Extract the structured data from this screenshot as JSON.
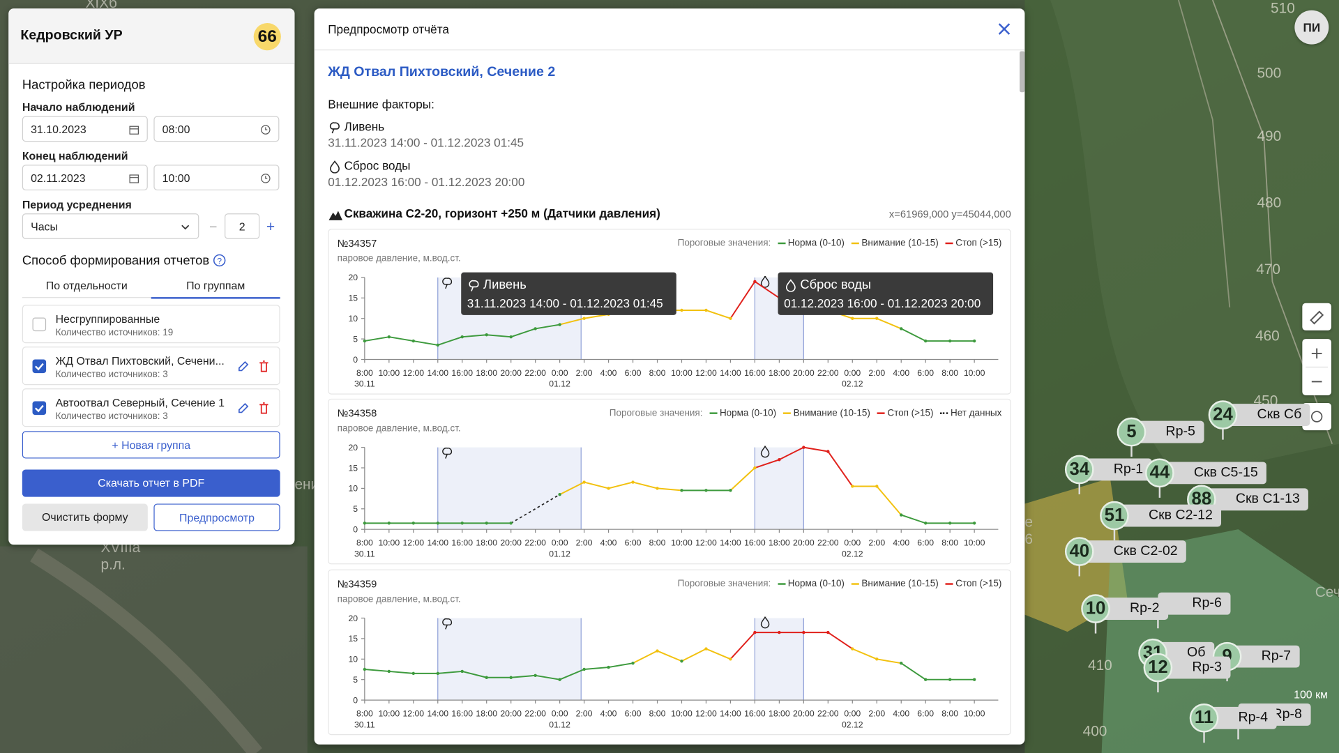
{
  "left_panel": {
    "title": "Кедровский УР",
    "badge": 66,
    "section_title": "Настройка периодов",
    "start_label": "Начало наблюдений",
    "start_date": "31.10.2023",
    "start_time": "08:00",
    "end_label": "Конец наблюдений",
    "end_date": "02.11.2023",
    "end_time": "10:00",
    "avg_label": "Период усреднения",
    "avg_unit": "Часы",
    "avg_count": 2,
    "method_title": "Способ формирования отчетов",
    "tabs": [
      "По отдельности",
      "По группам"
    ],
    "groups": [
      {
        "name": "Несгруппированные",
        "count_label": "Количество источников:",
        "count": 19,
        "checked": false
      },
      {
        "name": "ЖД Отвал Пихтовский, Сечени...",
        "count_label": "Количество источников:",
        "count": 3,
        "checked": true
      },
      {
        "name": "Автоотвал Северный, Сечение 1",
        "count_label": "Количество источников:",
        "count": 3,
        "checked": true
      }
    ],
    "new_group": "Новая группа",
    "download": "Скачать отчет в PDF",
    "clear": "Очистить форму",
    "preview": "Предпросмотр"
  },
  "modal": {
    "title": "Предпросмотр отчёта",
    "heading": "ЖД Отвал Пихтовский, Сечение 2",
    "factors_label": "Внешние факторы:",
    "factors": [
      {
        "name": "Ливень",
        "period": "31.11.2023 14:00 - 01.12.2023 01:45"
      },
      {
        "name": "Сброс воды",
        "period": "01.12.2023 16:00 - 01.12.2023 20:00"
      }
    ],
    "well": "Скважина С2-20, горизонт +250 м (Датчики давления)",
    "coords": "x=61969,000 y=45044,000"
  },
  "chart_data": [
    {
      "type": "line",
      "title": "№34357",
      "subtitle": "паровое давление, м.вод.ст.",
      "legend_title": "Пороговые значения:",
      "thresholds": [
        {
          "name": "Норма (0-10)",
          "color": "#3d9a3d",
          "max": 10
        },
        {
          "name": "Внимание (10-15)",
          "color": "#f2c10f",
          "max": 15
        },
        {
          "name": "Стоп (>15)",
          "color": "#e0201b"
        }
      ],
      "categories": [
        "8:00",
        "10:00",
        "12:00",
        "14:00",
        "16:00",
        "18:00",
        "20:00",
        "22:00",
        "0:00",
        "2:00",
        "4:00",
        "6:00",
        "8:00",
        "10:00",
        "12:00",
        "14:00",
        "16:00",
        "18:00",
        "20:00",
        "22:00",
        "0:00",
        "2:00",
        "4:00",
        "6:00",
        "8:00",
        "10:00"
      ],
      "dates": [
        "30.11",
        "01.12",
        "02.12"
      ],
      "values": [
        4.5,
        5.5,
        4.5,
        3.5,
        5.5,
        6,
        5.5,
        7.5,
        8.5,
        10,
        11,
        12,
        12,
        12,
        12,
        10,
        19,
        15,
        14,
        12,
        10,
        10,
        7.5,
        4.5,
        4.5,
        4.5
      ],
      "ylim": [
        0,
        20
      ],
      "yticks": [
        0,
        5,
        10,
        15,
        20
      ]
    },
    {
      "type": "line",
      "title": "№34358",
      "subtitle": "паровое давление, м.вод.ст.",
      "legend_title": "Пороговые значения:",
      "thresholds": [
        {
          "name": "Норма (0-10)",
          "color": "#3d9a3d",
          "max": 10
        },
        {
          "name": "Внимание (10-15)",
          "color": "#f2c10f",
          "max": 15
        },
        {
          "name": "Стоп (>15)",
          "color": "#e0201b"
        }
      ],
      "no_data": {
        "name": "Нет данных",
        "color": "#222222"
      },
      "categories": [
        "8:00",
        "10:00",
        "12:00",
        "14:00",
        "16:00",
        "18:00",
        "20:00",
        "22:00",
        "0:00",
        "2:00",
        "4:00",
        "6:00",
        "8:00",
        "10:00",
        "12:00",
        "14:00",
        "16:00",
        "18:00",
        "20:00",
        "22:00",
        "0:00",
        "2:00",
        "4:00",
        "6:00",
        "8:00",
        "10:00"
      ],
      "dates": [
        "30.11",
        "01.12",
        "02.12"
      ],
      "values": [
        1.5,
        1.5,
        1.5,
        1.5,
        1.5,
        1.5,
        1.5,
        null,
        8.5,
        11.5,
        10,
        11.5,
        10,
        9.5,
        9.5,
        9.5,
        15,
        17,
        20,
        19,
        10.5,
        10.5,
        3.5,
        1.5,
        1.5,
        1.5
      ],
      "ylim": [
        0,
        20
      ],
      "yticks": [
        0,
        5,
        10,
        15,
        20
      ]
    },
    {
      "type": "line",
      "title": "№34359",
      "subtitle": "паровое давление, м.вод.ст.",
      "legend_title": "Пороговые значения:",
      "thresholds": [
        {
          "name": "Норма (0-10)",
          "color": "#3d9a3d",
          "max": 10
        },
        {
          "name": "Внимание (10-15)",
          "color": "#f2c10f",
          "max": 15
        },
        {
          "name": "Стоп (>15)",
          "color": "#e0201b"
        }
      ],
      "categories": [
        "8:00",
        "10:00",
        "12:00",
        "14:00",
        "16:00",
        "18:00",
        "20:00",
        "22:00",
        "0:00",
        "2:00",
        "4:00",
        "6:00",
        "8:00",
        "10:00",
        "12:00",
        "14:00",
        "16:00",
        "18:00",
        "20:00",
        "22:00",
        "0:00",
        "2:00",
        "4:00",
        "6:00",
        "8:00",
        "10:00"
      ],
      "dates": [
        "30.11",
        "01.12",
        "02.12"
      ],
      "values": [
        7.5,
        7,
        6.5,
        6.5,
        7,
        5.5,
        5.5,
        6,
        5,
        7.5,
        8,
        9,
        12,
        9.5,
        12.5,
        10,
        16.5,
        16.5,
        16.5,
        16.5,
        12.5,
        10,
        9,
        5,
        5,
        5
      ],
      "ylim": [
        0,
        20
      ],
      "yticks": [
        0,
        5,
        10,
        15,
        20
      ]
    }
  ],
  "map": {
    "avatar": "ПИ",
    "scale": "100 км",
    "contours": [
      "510",
      "500",
      "490",
      "480",
      "470",
      "460",
      "450",
      "410",
      "400"
    ],
    "region_labels": [
      "XIXб - IV р.л.",
      "XVIIIа р.л.",
      "ени",
      "е 6",
      "Сеч"
    ],
    "markers": [
      {
        "number": 24,
        "label": "Скв Сб"
      },
      {
        "number": 5,
        "label": "Rp-5"
      },
      {
        "number": 34,
        "label": "Rp-1"
      },
      {
        "number": 44,
        "label": "Скв С5-15"
      },
      {
        "number": 88,
        "label": "Скв С1-13"
      },
      {
        "number": 51,
        "label": "Скв С2-12"
      },
      {
        "number": 40,
        "label": "Скв С2-02"
      },
      {
        "label": "Rp-6"
      },
      {
        "number": 10,
        "label": "Rp-2"
      },
      {
        "number": 31,
        "label": "Об"
      },
      {
        "number": 9,
        "label": "Rp-7"
      },
      {
        "number": 12,
        "label": "Rp-3"
      },
      {
        "label": "Rp-8"
      },
      {
        "number": 11,
        "label": "Rp-4"
      }
    ]
  }
}
